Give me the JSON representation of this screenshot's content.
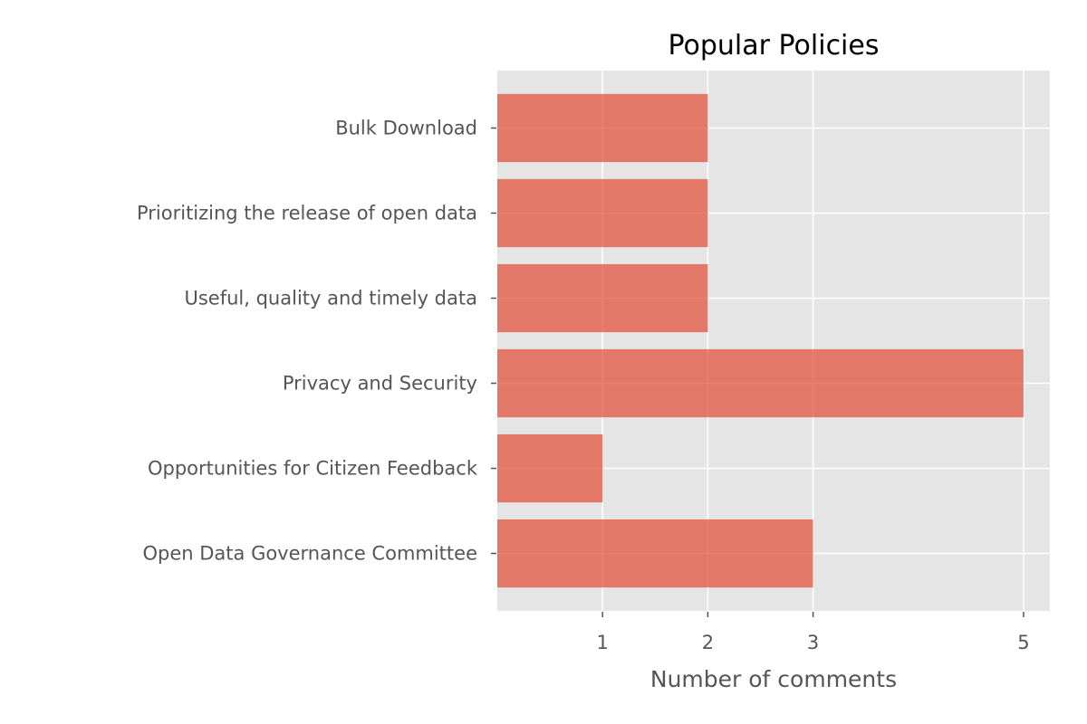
{
  "chart_data": {
    "type": "bar",
    "orientation": "horizontal",
    "title": "Popular Policies",
    "xlabel": "Number of comments",
    "ylabel": "",
    "categories": [
      "Bulk Download",
      "Prioritizing the release of open data",
      "Useful, quality and timely data",
      "Privacy and Security",
      "Opportunities for Citizen Feedback",
      "Open Data Governance Committee"
    ],
    "values": [
      2,
      2,
      2,
      5,
      1,
      3
    ],
    "xticks": [
      1,
      2,
      3,
      5
    ],
    "xlim": [
      0,
      5.25
    ],
    "grid": true,
    "colors": {
      "bar": "#E24A33",
      "plot_background": "#E5E5E5",
      "grid": "#FFFFFF",
      "tick_text": "#555555"
    }
  }
}
